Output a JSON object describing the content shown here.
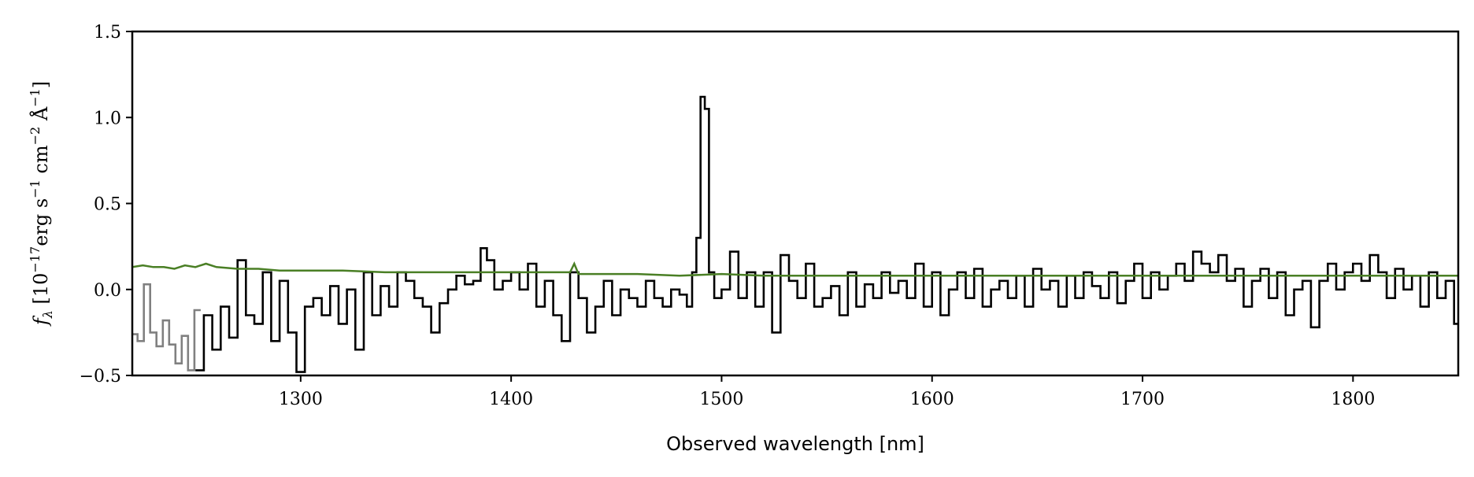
{
  "chart_data": {
    "type": "line",
    "xlabel": "Observed wavelength [nm]",
    "ylabel_parts": {
      "var": "f",
      "sub": "λ",
      "open": " [10",
      "exp1": "−17",
      "unit1": "erg s",
      "exp2": "−1",
      "unit2": " cm",
      "exp3": "−2",
      "unit3": " Å",
      "exp4": "−1",
      "close": "]"
    },
    "xlim": [
      1220,
      1850
    ],
    "ylim": [
      -0.5,
      1.5
    ],
    "xticks": [
      1300,
      1400,
      1500,
      1600,
      1700,
      1800
    ],
    "yticks": [
      -0.5,
      0.0,
      0.5,
      1.0,
      1.5
    ],
    "ytick_labels": [
      "−0.5",
      "0.0",
      "0.5",
      "1.0",
      "1.5"
    ],
    "grid": false,
    "series": [
      {
        "role": "flux-masked",
        "color": "#808080",
        "step": true,
        "x": [
          1221,
          1224,
          1227,
          1230,
          1233,
          1236,
          1239,
          1242,
          1245,
          1248,
          1251
        ],
        "y": [
          -0.26,
          -0.3,
          0.03,
          -0.25,
          -0.33,
          -0.18,
          -0.32,
          -0.43,
          -0.27,
          -0.47,
          -0.12
        ]
      },
      {
        "role": "flux",
        "color": "#000000",
        "step": true,
        "x": [
          1252,
          1256,
          1260,
          1264,
          1268,
          1272,
          1276,
          1280,
          1284,
          1288,
          1292,
          1296,
          1300,
          1304,
          1308,
          1312,
          1316,
          1320,
          1324,
          1328,
          1332,
          1336,
          1340,
          1344,
          1348,
          1352,
          1356,
          1360,
          1364,
          1368,
          1372,
          1376,
          1380,
          1384,
          1387,
          1390,
          1394,
          1398,
          1402,
          1406,
          1410,
          1414,
          1418,
          1422,
          1426,
          1430,
          1434,
          1438,
          1442,
          1446,
          1450,
          1454,
          1458,
          1462,
          1466,
          1470,
          1474,
          1478,
          1482,
          1485,
          1487,
          1489,
          1491,
          1493,
          1495,
          1498,
          1502,
          1506,
          1510,
          1514,
          1518,
          1522,
          1526,
          1530,
          1534,
          1538,
          1542,
          1546,
          1550,
          1554,
          1558,
          1562,
          1566,
          1570,
          1574,
          1578,
          1582,
          1586,
          1590,
          1594,
          1598,
          1602,
          1606,
          1610,
          1614,
          1618,
          1622,
          1626,
          1630,
          1634,
          1638,
          1642,
          1646,
          1650,
          1654,
          1658,
          1662,
          1666,
          1670,
          1674,
          1678,
          1682,
          1686,
          1690,
          1694,
          1698,
          1702,
          1706,
          1710,
          1714,
          1718,
          1722,
          1726,
          1730,
          1734,
          1738,
          1742,
          1746,
          1750,
          1754,
          1758,
          1762,
          1766,
          1770,
          1774,
          1778,
          1782,
          1786,
          1790,
          1794,
          1798,
          1802,
          1806,
          1810,
          1814,
          1818,
          1822,
          1826,
          1830,
          1834,
          1838,
          1842,
          1846,
          1850
        ],
        "y": [
          -0.47,
          -0.15,
          -0.35,
          -0.1,
          -0.28,
          0.17,
          -0.15,
          -0.2,
          0.1,
          -0.3,
          0.05,
          -0.25,
          -0.48,
          -0.1,
          -0.05,
          -0.15,
          0.02,
          -0.2,
          0.0,
          -0.35,
          0.1,
          -0.15,
          0.02,
          -0.1,
          0.1,
          0.05,
          -0.05,
          -0.1,
          -0.25,
          -0.08,
          0.0,
          0.08,
          0.03,
          0.05,
          0.24,
          0.17,
          0.0,
          0.05,
          0.1,
          0.0,
          0.15,
          -0.1,
          0.05,
          -0.15,
          -0.3,
          0.1,
          -0.05,
          -0.25,
          -0.1,
          0.05,
          -0.15,
          0.0,
          -0.05,
          -0.1,
          0.05,
          -0.05,
          -0.1,
          0.0,
          -0.03,
          -0.1,
          0.1,
          0.3,
          1.12,
          1.05,
          0.1,
          -0.05,
          0.0,
          0.22,
          -0.05,
          0.1,
          -0.1,
          0.1,
          -0.25,
          0.2,
          0.05,
          -0.05,
          0.15,
          -0.1,
          -0.05,
          0.02,
          -0.15,
          0.1,
          -0.1,
          0.03,
          -0.05,
          0.1,
          -0.02,
          0.05,
          -0.05,
          0.15,
          -0.1,
          0.1,
          -0.15,
          0.0,
          0.1,
          -0.05,
          0.12,
          -0.1,
          0.0,
          0.05,
          -0.05,
          0.08,
          -0.1,
          0.12,
          0.0,
          0.05,
          -0.1,
          0.08,
          -0.05,
          0.1,
          0.02,
          -0.05,
          0.1,
          -0.08,
          0.05,
          0.15,
          -0.05,
          0.1,
          0.0,
          0.08,
          0.15,
          0.05,
          0.22,
          0.15,
          0.1,
          0.2,
          0.05,
          0.12,
          -0.1,
          0.05,
          0.12,
          -0.05,
          0.1,
          -0.15,
          0.0,
          0.05,
          -0.22,
          0.05,
          0.15,
          0.0,
          0.1,
          0.15,
          0.05,
          0.2,
          0.1,
          -0.05,
          0.12,
          0.0,
          0.08,
          -0.1,
          0.1,
          -0.05,
          0.05,
          -0.2
        ]
      },
      {
        "role": "error",
        "color": "#4a7f25",
        "step": false,
        "x": [
          1220,
          1225,
          1230,
          1235,
          1240,
          1245,
          1250,
          1255,
          1260,
          1270,
          1280,
          1290,
          1300,
          1320,
          1340,
          1360,
          1380,
          1400,
          1420,
          1428,
          1430,
          1432,
          1440,
          1460,
          1480,
          1500,
          1520,
          1550,
          1600,
          1650,
          1700,
          1750,
          1800,
          1840,
          1850
        ],
        "y": [
          0.13,
          0.14,
          0.13,
          0.13,
          0.12,
          0.14,
          0.13,
          0.15,
          0.13,
          0.12,
          0.12,
          0.11,
          0.11,
          0.11,
          0.1,
          0.1,
          0.1,
          0.1,
          0.1,
          0.1,
          0.15,
          0.09,
          0.09,
          0.09,
          0.08,
          0.09,
          0.08,
          0.08,
          0.08,
          0.08,
          0.08,
          0.08,
          0.08,
          0.08,
          0.08
        ]
      }
    ]
  }
}
